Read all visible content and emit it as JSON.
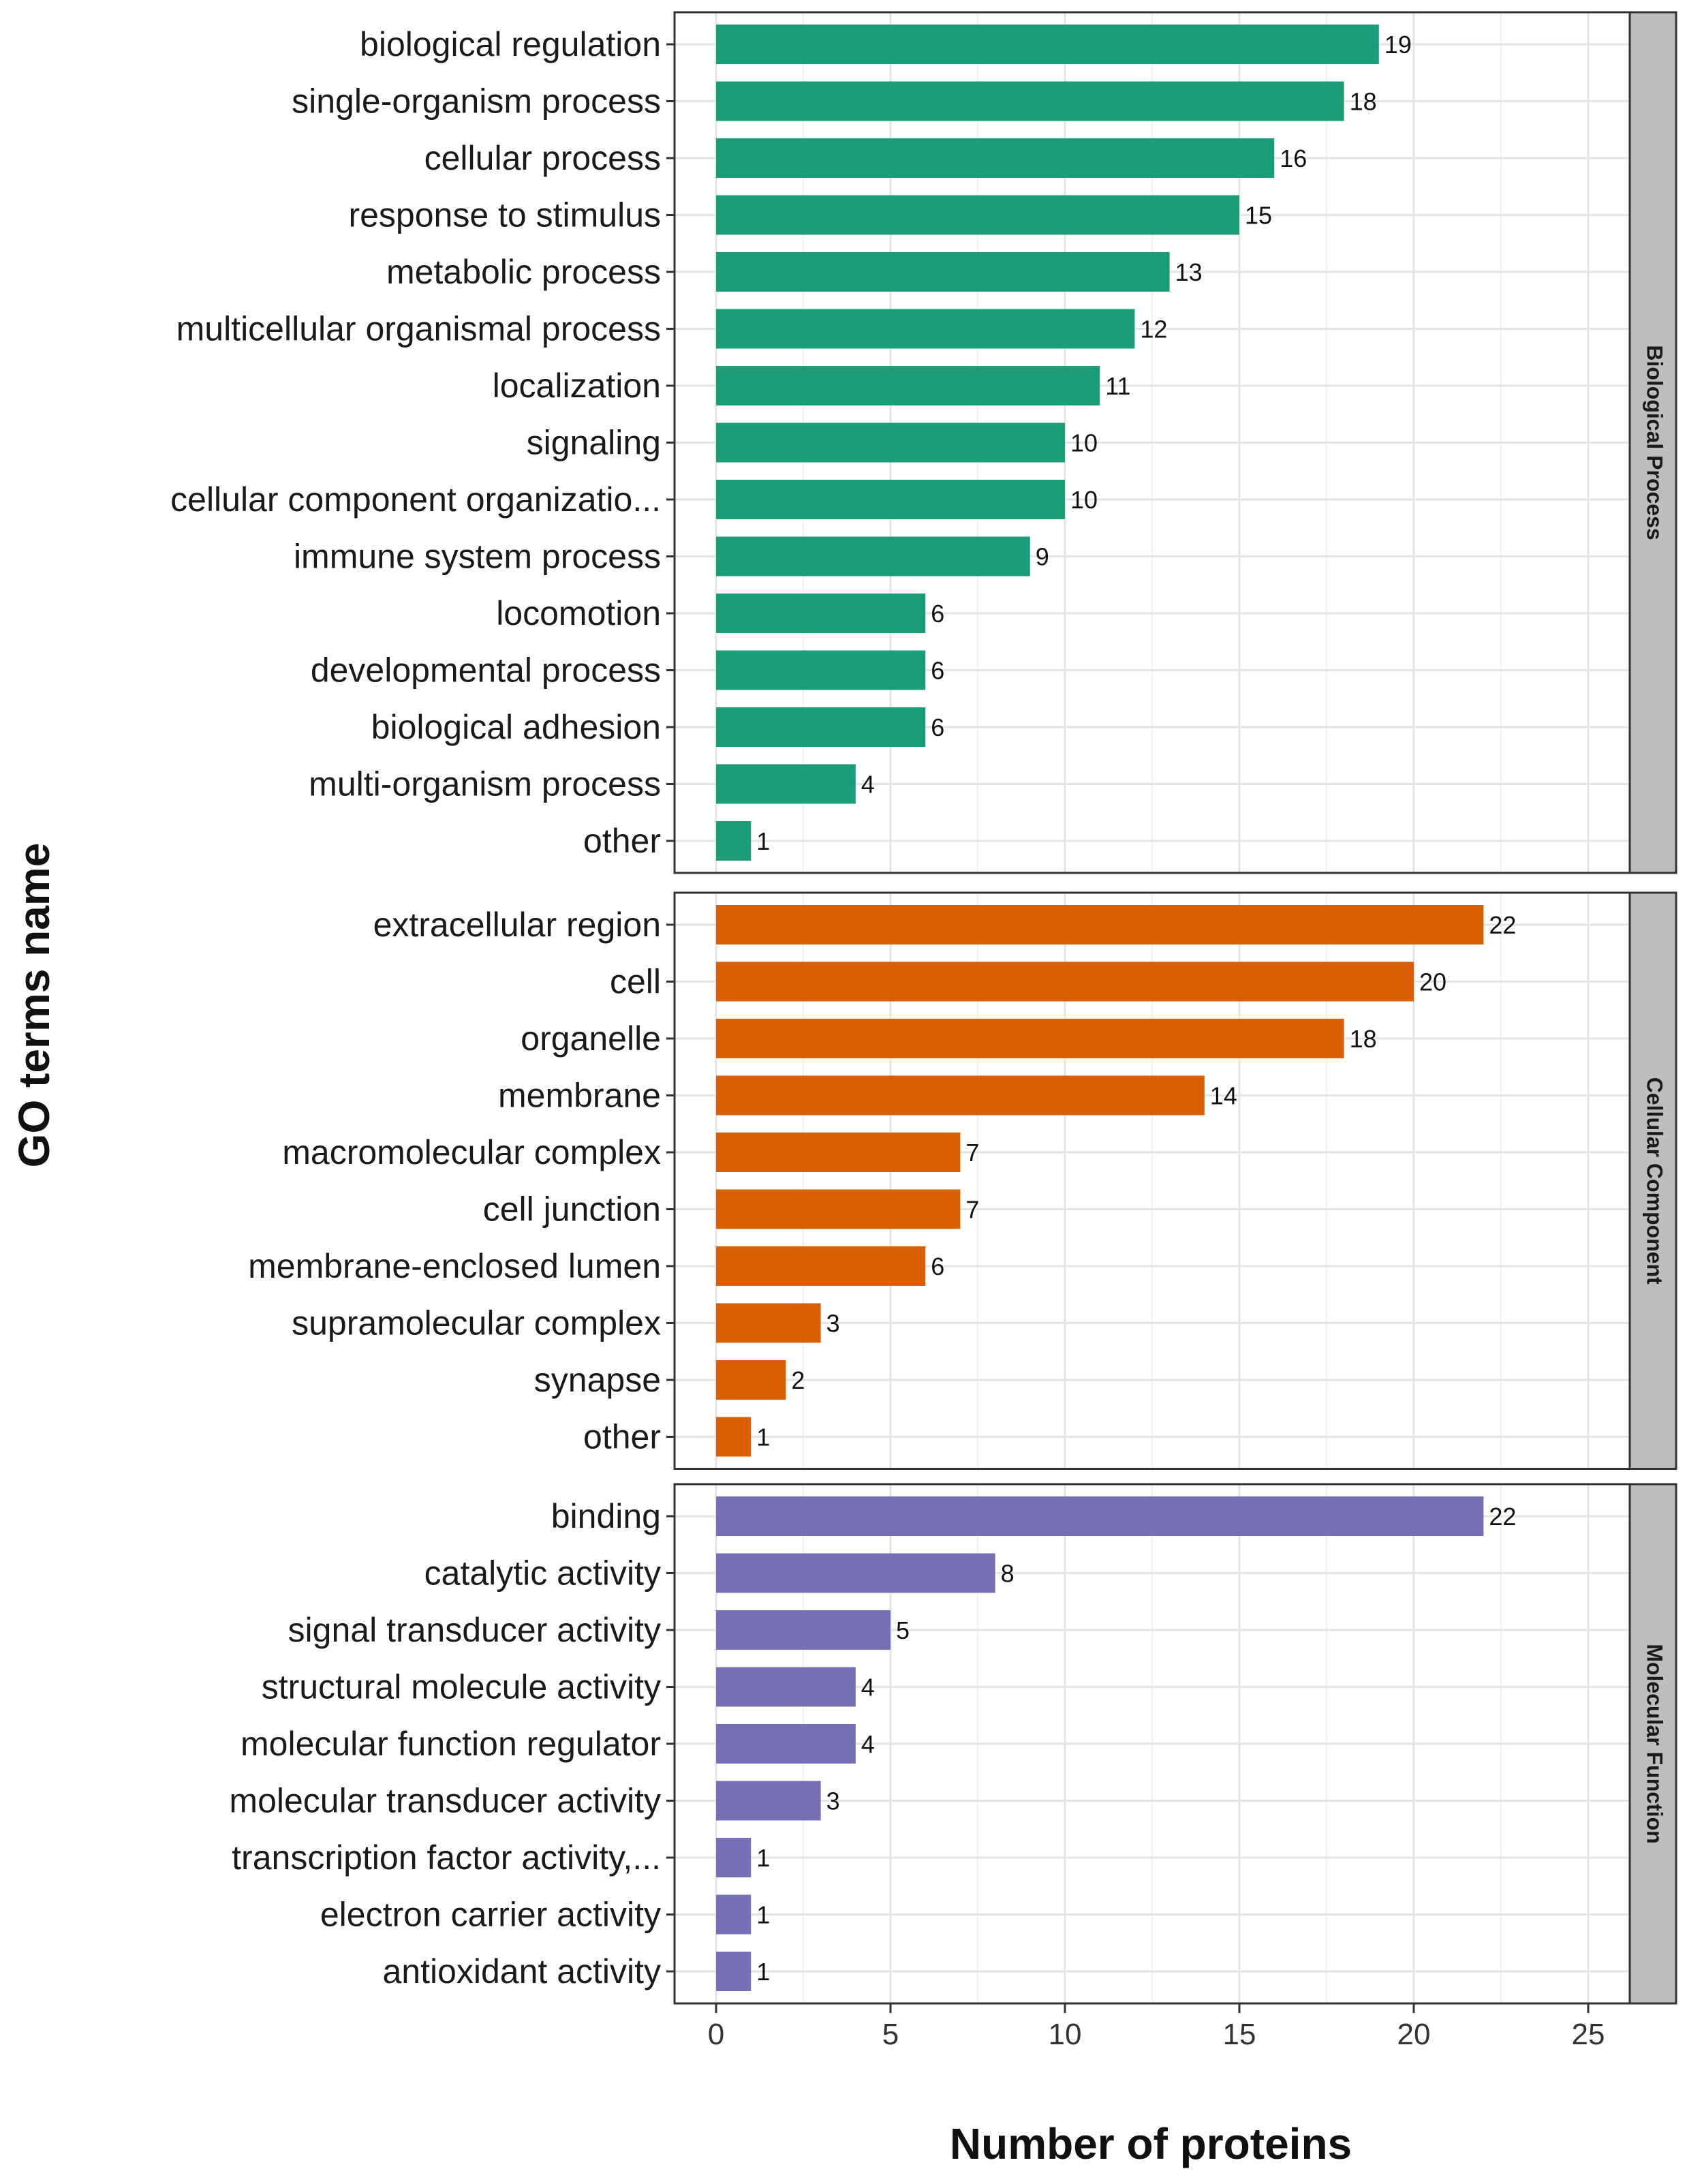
{
  "chart_data": {
    "type": "bar",
    "orientation": "horizontal",
    "xlabel": "Number of proteins",
    "ylabel": "GO terms name",
    "xlim": [
      0,
      26
    ],
    "x_ticks": [
      "0",
      "5",
      "10",
      "15",
      "20",
      "25"
    ],
    "grid": true,
    "facets": [
      {
        "name": "Biological Process",
        "color": "#1b9e77",
        "categories": [
          "biological regulation",
          "single-organism process",
          "cellular process",
          "response to stimulus",
          "metabolic process",
          "multicellular organismal process",
          "localization",
          "signaling",
          "cellular component organizatio...",
          "immune system process",
          "locomotion",
          "developmental process",
          "biological adhesion",
          "multi-organism process",
          "other"
        ],
        "values": [
          19,
          18,
          16,
          15,
          13,
          12,
          11,
          10,
          10,
          9,
          6,
          6,
          6,
          4,
          1
        ],
        "value_labels": [
          "19",
          "18",
          "16",
          "15",
          "13",
          "12",
          "11",
          "10",
          "10",
          "9",
          "6",
          "6",
          "6",
          "4",
          "1"
        ]
      },
      {
        "name": "Cellular Component",
        "color": "#d95f02",
        "categories": [
          "extracellular region",
          "cell",
          "organelle",
          "membrane",
          "macromolecular complex",
          "cell junction",
          "membrane-enclosed lumen",
          "supramolecular complex",
          "synapse",
          "other"
        ],
        "values": [
          22,
          20,
          18,
          14,
          7,
          7,
          6,
          3,
          2,
          1
        ],
        "value_labels": [
          "22",
          "20",
          "18",
          "14",
          "7",
          "7",
          "6",
          "3",
          "2",
          "1"
        ]
      },
      {
        "name": "Molecular Function",
        "color": "#7570b3",
        "categories": [
          "binding",
          "catalytic activity",
          "signal transducer activity",
          "structural molecule activity",
          "molecular function regulator",
          "molecular transducer activity",
          "transcription factor activity,...",
          "electron carrier activity",
          "antioxidant activity"
        ],
        "values": [
          22,
          8,
          5,
          4,
          4,
          3,
          1,
          1,
          1
        ],
        "value_labels": [
          "22",
          "8",
          "5",
          "4",
          "4",
          "3",
          "1",
          "1",
          "1"
        ]
      }
    ]
  }
}
